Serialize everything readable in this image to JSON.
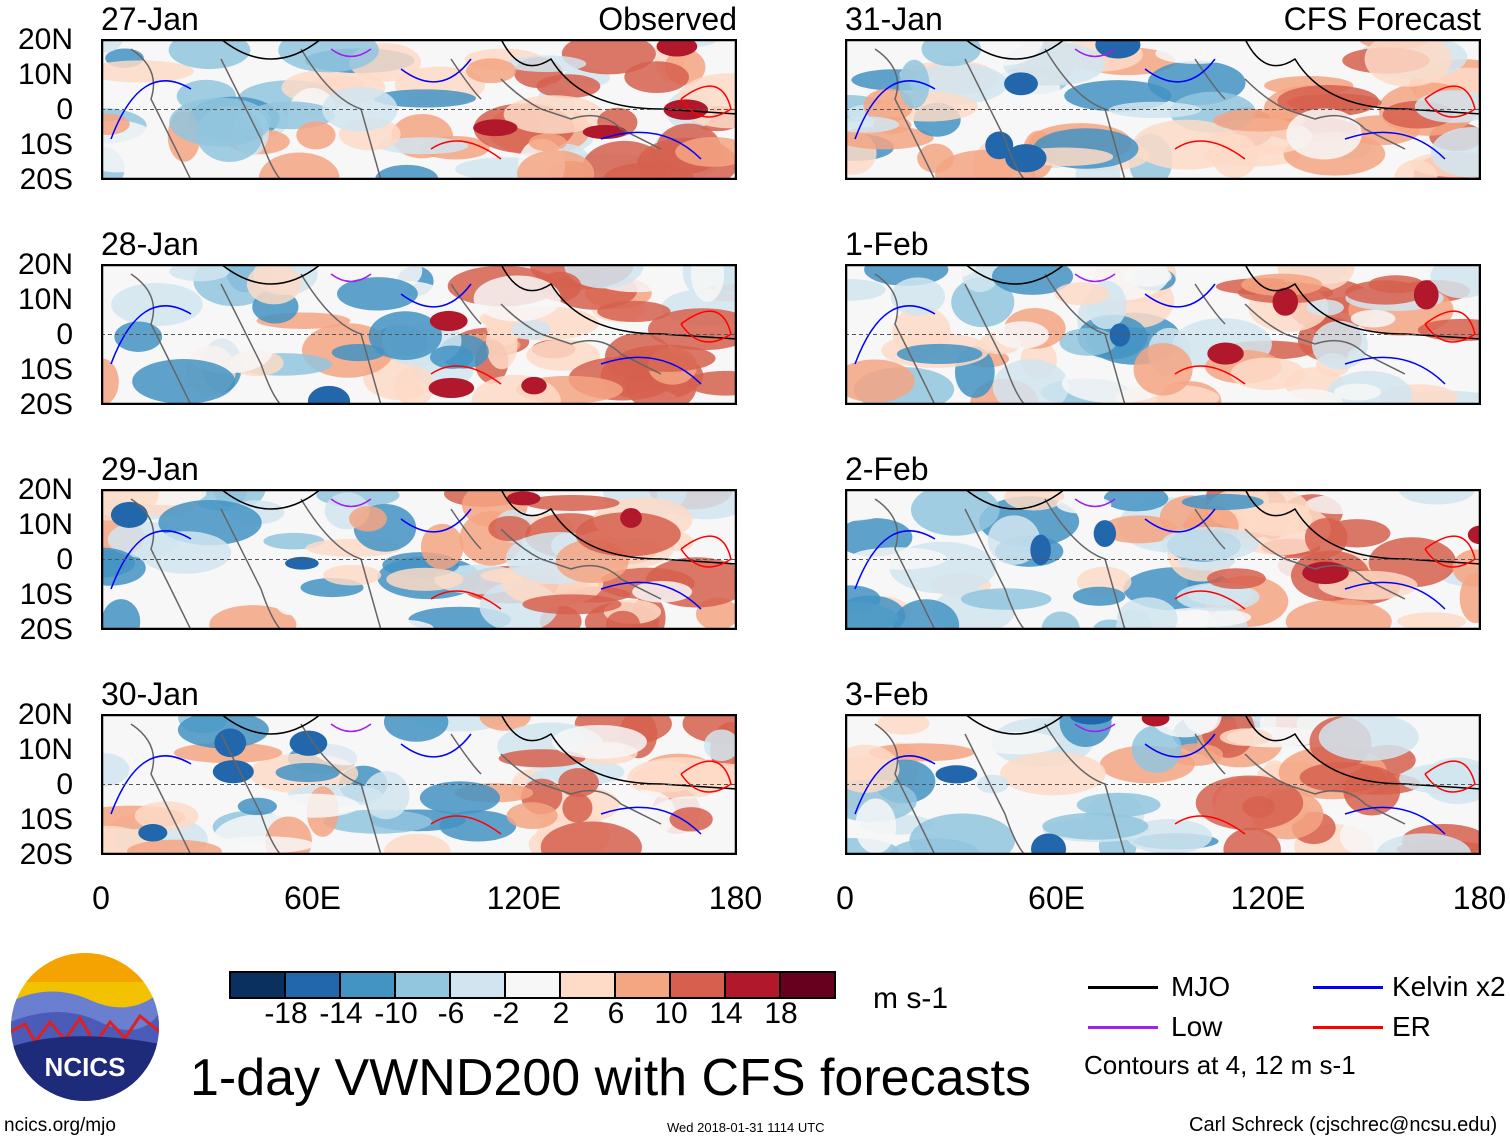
{
  "panels": {
    "left": [
      {
        "date": "27-Jan",
        "label": "Observed"
      },
      {
        "date": "28-Jan"
      },
      {
        "date": "29-Jan"
      },
      {
        "date": "30-Jan"
      }
    ],
    "right": [
      {
        "date": "31-Jan",
        "label": "CFS Forecast"
      },
      {
        "date": "1-Feb"
      },
      {
        "date": "2-Feb"
      },
      {
        "date": "3-Feb"
      }
    ]
  },
  "lat_labels": [
    "20N",
    "10N",
    "0",
    "10S",
    "20S"
  ],
  "lon_labels": [
    "0",
    "60E",
    "120E",
    "180"
  ],
  "colorbar": {
    "colors": [
      "#0a3060",
      "#2266ac",
      "#4393c3",
      "#92c5de",
      "#d1e5f0",
      "#f7f7f7",
      "#fddbc7",
      "#f4a582",
      "#d6604d",
      "#b2182b",
      "#67001f"
    ],
    "labels": [
      "-18",
      "-14",
      "-10",
      "-6",
      "-2",
      "2",
      "6",
      "10",
      "14",
      "18"
    ],
    "units": "m s-1"
  },
  "legend": {
    "items": [
      {
        "label": "MJO",
        "color": "#000000"
      },
      {
        "label": "Kelvin x2",
        "color": "#0000ff"
      },
      {
        "label": "Low",
        "color": "#a020f0"
      },
      {
        "label": "ER",
        "color": "#ff0000"
      }
    ],
    "note": "Contours at 4, 12 m s-1"
  },
  "title": "1-day VWND200 with CFS forecasts",
  "logo_text": "NCICS",
  "url": "ncics.org/mjo",
  "timestamp": "Wed 2018-01-31 1114 UTC",
  "credit": "Carl Schreck (cjschrec@ncsu.edu)"
}
